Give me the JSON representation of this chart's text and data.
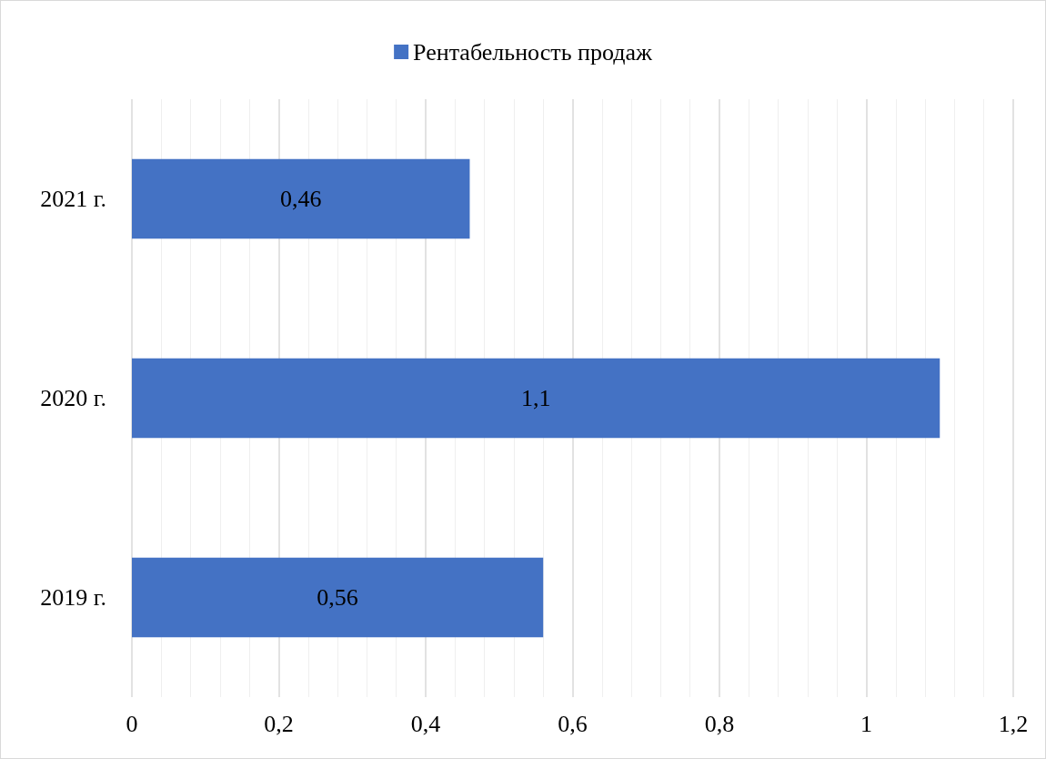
{
  "chart_data": {
    "type": "bar",
    "orientation": "horizontal",
    "categories": [
      "2021 г.",
      "2020 г.",
      "2019 г."
    ],
    "series": [
      {
        "name": "Рентабельность продаж",
        "color": "#4472c4",
        "values": [
          0.46,
          1.1,
          0.56
        ],
        "value_labels": [
          "0,46",
          "1,1",
          "0,56"
        ]
      }
    ],
    "xlim": [
      0,
      1.2
    ],
    "xticks": [
      0,
      {
        "value": 0.2,
        "label": "0,2"
      },
      {
        "value": 0.4,
        "label": "0,4"
      },
      {
        "value": 0.6,
        "label": "0,6"
      },
      {
        "value": 0.8,
        "label": "0,8"
      },
      1,
      {
        "value": 1.2,
        "label": "1,2"
      }
    ],
    "grid": "x",
    "legend": "top"
  }
}
